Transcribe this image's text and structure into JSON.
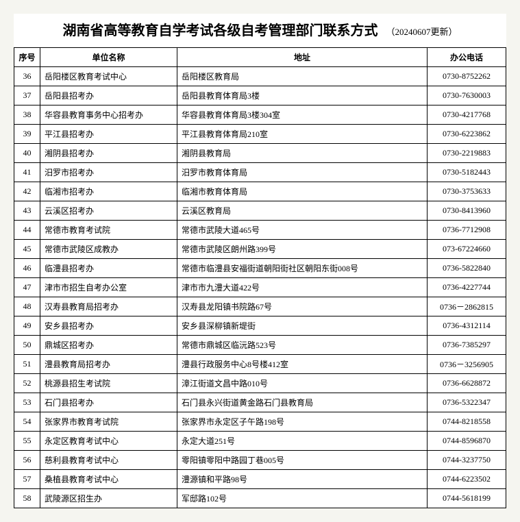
{
  "title": {
    "main": "湖南省高等教育自学考试各级自考管理部门联系方式",
    "sub": "（20240607更新）"
  },
  "table": {
    "headers": {
      "seq": "序号",
      "name": "单位名称",
      "addr": "地址",
      "phone": "办公电话"
    },
    "rows": [
      {
        "seq": "36",
        "name": "岳阳楼区教育考试中心",
        "addr": "岳阳楼区教育局",
        "phone": "0730-8752262"
      },
      {
        "seq": "37",
        "name": "岳阳县招考办",
        "addr": "岳阳县教育体育局3楼",
        "phone": "0730-7630003"
      },
      {
        "seq": "38",
        "name": "华容县教育事务中心招考办",
        "addr": "华容县教育体育局3楼304室",
        "phone": "0730-4217768"
      },
      {
        "seq": "39",
        "name": "平江县招考办",
        "addr": "平江县教育体育局210室",
        "phone": "0730-6223862"
      },
      {
        "seq": "40",
        "name": "湘阴县招考办",
        "addr": "湘阴县教育局",
        "phone": "0730-2219883"
      },
      {
        "seq": "41",
        "name": "汨罗市招考办",
        "addr": "汨罗市教育体育局",
        "phone": "0730-5182443"
      },
      {
        "seq": "42",
        "name": "临湘市招考办",
        "addr": "临湘市教育体育局",
        "phone": "0730-3753633"
      },
      {
        "seq": "43",
        "name": "云溪区招考办",
        "addr": "云溪区教育局",
        "phone": "0730-8413960"
      },
      {
        "seq": "44",
        "name": "常德市教育考试院",
        "addr": "常德市武陵大道465号",
        "phone": "0736-7712908"
      },
      {
        "seq": "45",
        "name": "常德市武陵区成教办",
        "addr": "常德市武陵区朗州路399号",
        "phone": "073-67224660"
      },
      {
        "seq": "46",
        "name": "临澧县招考办",
        "addr": "常德市临澧县安福街道朝阳街社区朝阳东街008号",
        "phone": "0736-5822840"
      },
      {
        "seq": "47",
        "name": "津市市招生自考办公室",
        "addr": "津市市九澧大道422号",
        "phone": "0736-4227744"
      },
      {
        "seq": "48",
        "name": "汉寿县教育局招考办",
        "addr": "汉寿县龙阳镇书院路67号",
        "phone": "0736－2862815"
      },
      {
        "seq": "49",
        "name": "安乡县招考办",
        "addr": "安乡县深柳镇新堤街",
        "phone": "0736-4312114"
      },
      {
        "seq": "50",
        "name": "鼎城区招考办",
        "addr": "常德市鼎城区临沅路523号",
        "phone": "0736-7385297"
      },
      {
        "seq": "51",
        "name": "澧县教育局招考办",
        "addr": "澧县行政服务中心8号楼412室",
        "phone": "0736－3256905"
      },
      {
        "seq": "52",
        "name": "桃源县招生考试院",
        "addr": "漳江街道文昌中路010号",
        "phone": "0736-6628872"
      },
      {
        "seq": "53",
        "name": "石门县招考办",
        "addr": "石门县永兴街道黄金路石门县教育局",
        "phone": "0736-5322347"
      },
      {
        "seq": "54",
        "name": "张家界市教育考试院",
        "addr": "张家界市永定区子午路198号",
        "phone": "0744-8218558"
      },
      {
        "seq": "55",
        "name": "永定区教育考试中心",
        "addr": "永定大道251号",
        "phone": "0744-8596870"
      },
      {
        "seq": "56",
        "name": "慈利县教育考试中心",
        "addr": "零阳镇零阳中路园丁巷005号",
        "phone": "0744-3237750"
      },
      {
        "seq": "57",
        "name": "桑植县教育考试中心",
        "addr": "澧源镇和平路98号",
        "phone": "0744-6223502"
      },
      {
        "seq": "58",
        "name": "武陵源区招生办",
        "addr": "军邸路102号",
        "phone": "0744-5618199"
      }
    ]
  }
}
